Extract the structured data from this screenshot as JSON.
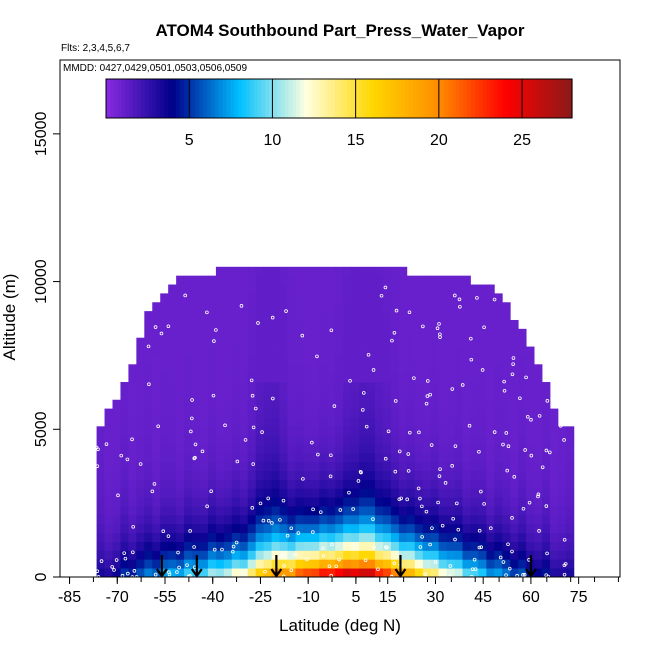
{
  "chart_data": {
    "type": "heatmap",
    "title": "ATOM4 Southbound Part_Press_Water_Vapor",
    "flights_note": "Flts: 2,3,4,5,6,7",
    "dates_note": "MMDD: 0427,0429,0501,0503,0506,0509",
    "xlabel": "Latitude (deg N)",
    "ylabel": "Altitude (m)",
    "xlim": [
      -88,
      88
    ],
    "ylim": [
      0,
      17500
    ],
    "x_ticks": [
      -85,
      -70,
      -55,
      -40,
      -25,
      -10,
      5,
      15,
      30,
      45,
      60,
      75
    ],
    "y_ticks": [
      0,
      5000,
      10000,
      15000
    ],
    "colorbar": {
      "range": [
        0,
        28
      ],
      "ticks": [
        5,
        10,
        15,
        20,
        25
      ],
      "colors": [
        "#8a2be2",
        "#00008b",
        "#00bfff",
        "#ffffe0",
        "#ffd700",
        "#ff8c00",
        "#ff0000",
        "#8b1a1a"
      ]
    },
    "arrow_latitudes": [
      -56,
      -45,
      -20,
      19,
      60
    ],
    "latitude_columns": [
      {
        "lat": -75,
        "top": 5000
      },
      {
        "lat": -66,
        "top": 6800
      },
      {
        "lat": -60,
        "top": 9000
      },
      {
        "lat": -50,
        "top": 10000
      },
      {
        "lat": -40,
        "top": 10200
      },
      {
        "lat": -30,
        "top": 10500
      },
      {
        "lat": -20,
        "top": 10500
      },
      {
        "lat": -10,
        "top": 10500
      },
      {
        "lat": 0,
        "top": 10500
      },
      {
        "lat": 10,
        "top": 10500
      },
      {
        "lat": 20,
        "top": 10200
      },
      {
        "lat": 30,
        "top": 10000
      },
      {
        "lat": 40,
        "top": 10000
      },
      {
        "lat": 50,
        "top": 9500
      },
      {
        "lat": 58,
        "top": 8000
      },
      {
        "lat": 64,
        "top": 6500
      },
      {
        "lat": 70,
        "top": 5000
      }
    ],
    "surface_profile": [
      {
        "lat": -75,
        "v0": 3
      },
      {
        "lat": -60,
        "v0": 7
      },
      {
        "lat": -45,
        "v0": 10
      },
      {
        "lat": -30,
        "v0": 14
      },
      {
        "lat": -20,
        "v0": 19
      },
      {
        "lat": -10,
        "v0": 25
      },
      {
        "lat": 0,
        "v0": 27
      },
      {
        "lat": 10,
        "v0": 26
      },
      {
        "lat": 18,
        "v0": 22
      },
      {
        "lat": 30,
        "v0": 15
      },
      {
        "lat": 45,
        "v0": 9
      },
      {
        "lat": 60,
        "v0": 5
      },
      {
        "lat": 72,
        "v0": 3
      }
    ]
  }
}
